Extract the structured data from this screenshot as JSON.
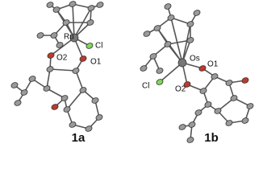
{
  "panels": [
    {
      "label": "1a",
      "atoms": [
        "Ru",
        "Cl",
        "O2",
        "O1"
      ]
    },
    {
      "label": "1b",
      "atoms": [
        "Os",
        "O1",
        "Cl",
        "O2"
      ]
    }
  ]
}
